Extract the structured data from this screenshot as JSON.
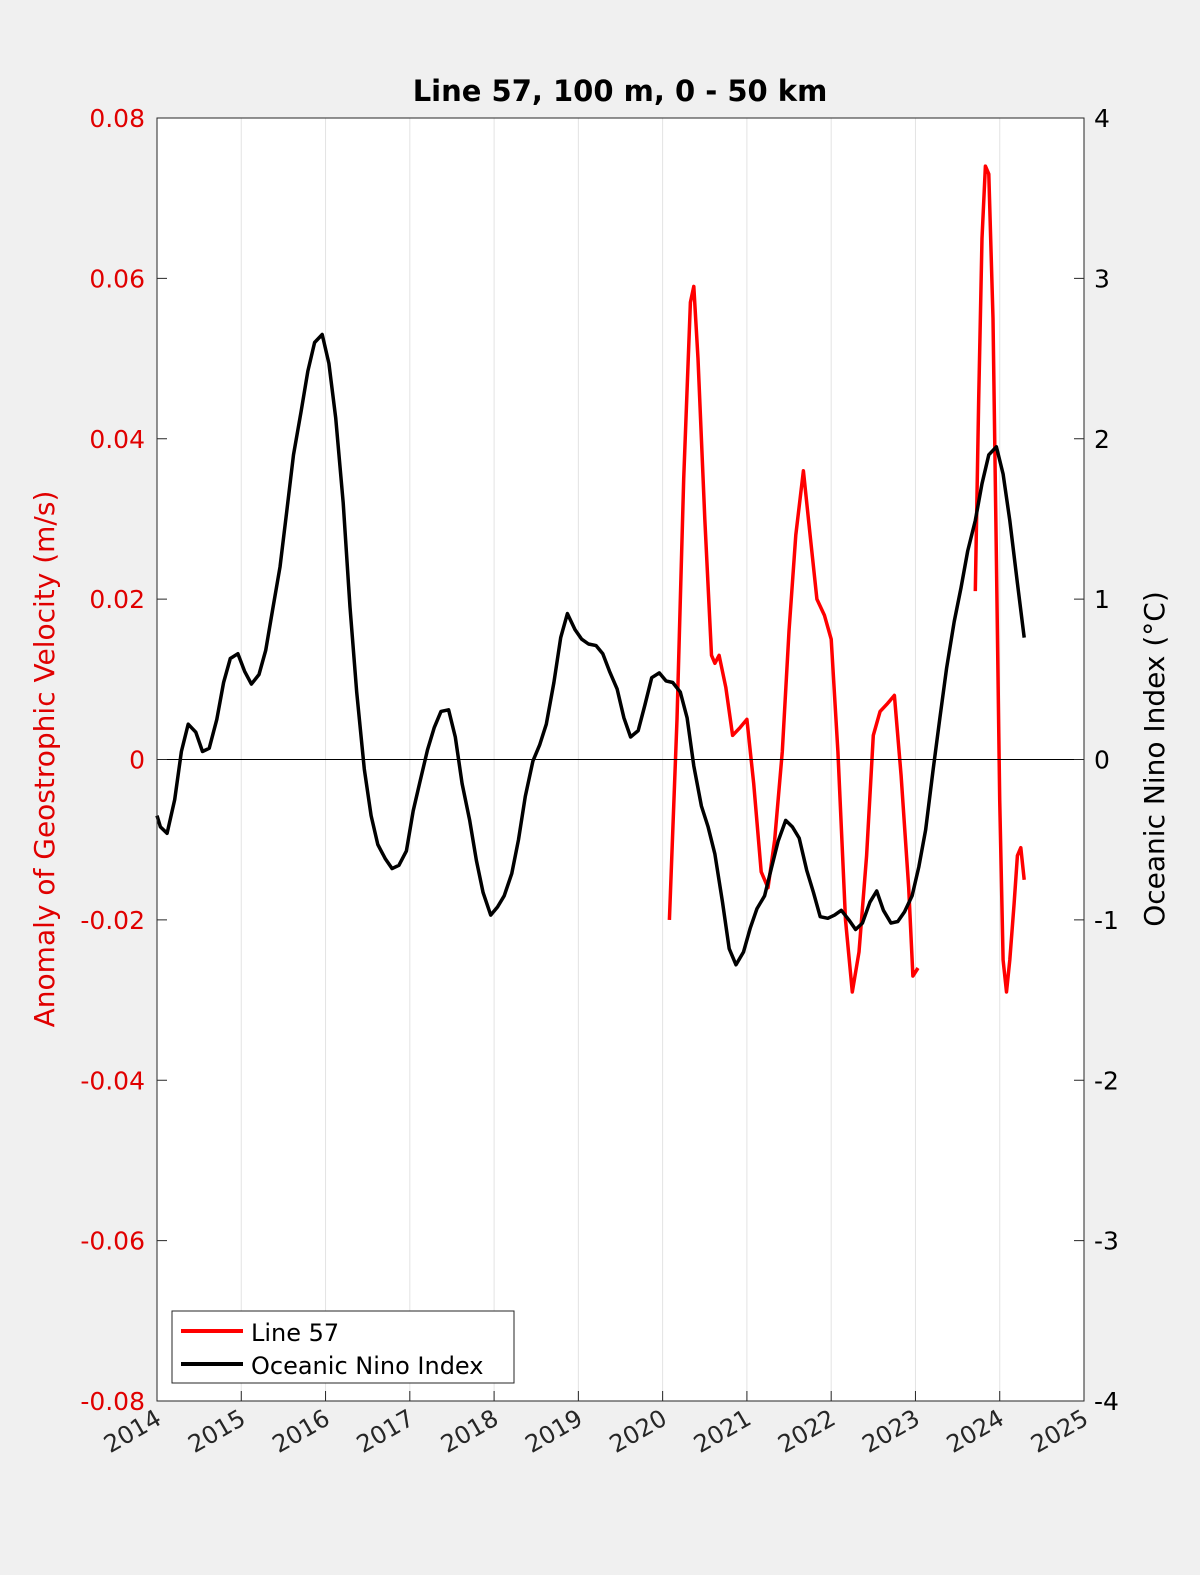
{
  "chart_data": {
    "type": "line",
    "title": "Line 57, 100 m, 0 - 50 km",
    "xlim": [
      2014,
      2025
    ],
    "x_ticks": [
      "2014",
      "2015",
      "2016",
      "2017",
      "2018",
      "2019",
      "2020",
      "2021",
      "2022",
      "2023",
      "2024",
      "2025"
    ],
    "y_left": {
      "label": "Anomaly of Geostrophic Velocity (m/s)",
      "lim": [
        -0.08,
        0.08
      ],
      "ticks": [
        "-0.08",
        "-0.06",
        "-0.04",
        "-0.02",
        "0",
        "0.02",
        "0.04",
        "0.06",
        "0.08"
      ],
      "color": "#e00000"
    },
    "y_right": {
      "label": "Oceanic Nino Index (°C)",
      "lim": [
        -4,
        4
      ],
      "ticks": [
        "-4",
        "-3",
        "-2",
        "-1",
        "0",
        "1",
        "2",
        "3",
        "4"
      ],
      "color": "#000000"
    },
    "grid": "vertical",
    "legend_position": "bottom-left",
    "series": [
      {
        "name": "Line 57",
        "axis": "left",
        "color": "#ff0000",
        "segments": [
          {
            "x": [
              2020.08,
              2020.17,
              2020.25,
              2020.33,
              2020.37,
              2020.42,
              2020.5,
              2020.58,
              2020.62,
              2020.67,
              2020.75,
              2020.83,
              2020.92,
              2021.0,
              2021.08,
              2021.17,
              2021.25,
              2021.33,
              2021.42,
              2021.5,
              2021.58,
              2021.67,
              2021.75,
              2021.83,
              2021.92,
              2022.0,
              2022.08,
              2022.17,
              2022.25,
              2022.33,
              2022.42,
              2022.5,
              2022.58,
              2022.67,
              2022.75,
              2022.83,
              2022.92,
              2022.97,
              2023.03
            ],
            "y": [
              -0.02,
              0.005,
              0.035,
              0.057,
              0.059,
              0.05,
              0.03,
              0.013,
              0.012,
              0.013,
              0.009,
              0.003,
              0.004,
              0.005,
              -0.003,
              -0.014,
              -0.016,
              -0.01,
              0.001,
              0.016,
              0.028,
              0.036,
              0.028,
              0.02,
              0.018,
              0.015,
              0.001,
              -0.02,
              -0.029,
              -0.024,
              -0.012,
              0.003,
              0.006,
              0.007,
              0.008,
              -0.002,
              -0.016,
              -0.027,
              -0.026
            ]
          },
          {
            "x": [
              2023.71,
              2023.75,
              2023.79,
              2023.83,
              2023.87,
              2023.92,
              2023.96,
              2024.0,
              2024.04,
              2024.08,
              2024.12,
              2024.17,
              2024.21,
              2024.25,
              2024.29
            ],
            "y": [
              0.021,
              0.045,
              0.065,
              0.074,
              0.073,
              0.055,
              0.025,
              -0.005,
              -0.025,
              -0.029,
              -0.025,
              -0.018,
              -0.012,
              -0.011,
              -0.015
            ]
          }
        ]
      },
      {
        "name": "Oceanic Nino Index",
        "axis": "right",
        "color": "#000000",
        "segments": [
          {
            "x": [
              2014.0,
              2014.04,
              2014.12,
              2014.21,
              2014.29,
              2014.37,
              2014.46,
              2014.54,
              2014.62,
              2014.71,
              2014.79,
              2014.87,
              2014.96,
              2015.04,
              2015.12,
              2015.21,
              2015.29,
              2015.37,
              2015.46,
              2015.54,
              2015.62,
              2015.71,
              2015.79,
              2015.87,
              2015.96,
              2016.04,
              2016.12,
              2016.21,
              2016.29,
              2016.37,
              2016.46,
              2016.54,
              2016.62,
              2016.71,
              2016.79,
              2016.87,
              2016.96,
              2017.04,
              2017.12,
              2017.21,
              2017.29,
              2017.37,
              2017.46,
              2017.54,
              2017.62,
              2017.71,
              2017.79,
              2017.87,
              2017.96,
              2018.04,
              2018.12,
              2018.21,
              2018.29,
              2018.37,
              2018.46,
              2018.54,
              2018.62,
              2018.71,
              2018.79,
              2018.87,
              2018.96,
              2019.04,
              2019.12,
              2019.21,
              2019.29,
              2019.37,
              2019.46,
              2019.54,
              2019.62,
              2019.71,
              2019.79,
              2019.87,
              2019.96,
              2020.04,
              2020.12,
              2020.21,
              2020.29,
              2020.37,
              2020.46,
              2020.54,
              2020.62,
              2020.71,
              2020.79,
              2020.87,
              2020.96,
              2021.04,
              2021.12,
              2021.21,
              2021.29,
              2021.37,
              2021.46,
              2021.54,
              2021.62,
              2021.71,
              2021.79,
              2021.87,
              2021.96,
              2022.04,
              2022.12,
              2022.21,
              2022.29,
              2022.37,
              2022.46,
              2022.54,
              2022.62,
              2022.71,
              2022.79,
              2022.87,
              2022.96,
              2023.04,
              2023.12,
              2023.21,
              2023.29,
              2023.37,
              2023.46,
              2023.54,
              2023.62,
              2023.71,
              2023.79,
              2023.87,
              2023.96,
              2024.04,
              2024.12,
              2024.21,
              2024.29
            ],
            "y": [
              -0.35,
              -0.42,
              -0.46,
              -0.25,
              0.05,
              0.22,
              0.17,
              0.05,
              0.07,
              0.25,
              0.48,
              0.63,
              0.66,
              0.55,
              0.47,
              0.53,
              0.68,
              0.93,
              1.2,
              1.55,
              1.9,
              2.17,
              2.42,
              2.6,
              2.65,
              2.47,
              2.13,
              1.6,
              0.95,
              0.42,
              -0.06,
              -0.35,
              -0.53,
              -0.62,
              -0.68,
              -0.66,
              -0.57,
              -0.32,
              -0.14,
              0.06,
              0.2,
              0.3,
              0.31,
              0.14,
              -0.15,
              -0.38,
              -0.63,
              -0.83,
              -0.97,
              -0.92,
              -0.85,
              -0.71,
              -0.5,
              -0.23,
              -0.01,
              0.09,
              0.22,
              0.48,
              0.76,
              0.91,
              0.81,
              0.75,
              0.72,
              0.71,
              0.66,
              0.55,
              0.44,
              0.26,
              0.14,
              0.18,
              0.34,
              0.51,
              0.54,
              0.49,
              0.48,
              0.42,
              0.26,
              -0.04,
              -0.29,
              -0.42,
              -0.59,
              -0.89,
              -1.18,
              -1.28,
              -1.2,
              -1.05,
              -0.93,
              -0.85,
              -0.68,
              -0.51,
              -0.38,
              -0.42,
              -0.49,
              -0.69,
              -0.83,
              -0.98,
              -0.99,
              -0.97,
              -0.94,
              -1.0,
              -1.06,
              -1.02,
              -0.89,
              -0.82,
              -0.94,
              -1.02,
              -1.01,
              -0.95,
              -0.85,
              -0.67,
              -0.44,
              -0.06,
              0.26,
              0.57,
              0.86,
              1.07,
              1.3,
              1.49,
              1.72,
              1.9,
              1.95,
              1.78,
              1.49,
              1.1,
              0.76
            ]
          }
        ]
      }
    ]
  }
}
